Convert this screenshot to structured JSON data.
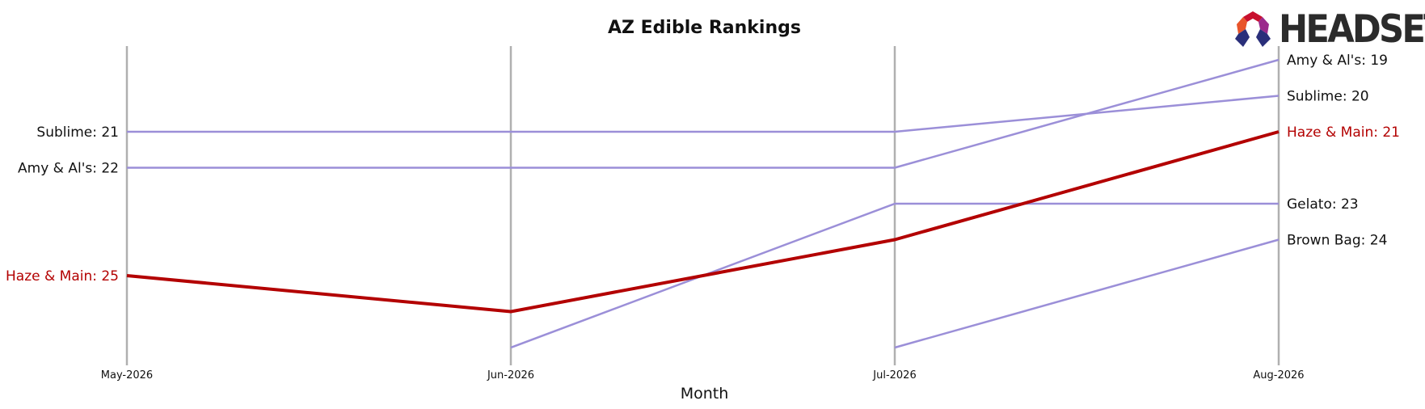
{
  "chart_data": {
    "type": "line",
    "title": "AZ Edible Rankings",
    "xlabel": "Month",
    "ylabel": "",
    "categories": [
      "May-2026",
      "Jun-2026",
      "Jul-2026",
      "Aug-2026"
    ],
    "y_inverted": true,
    "ylim": [
      18,
      27
    ],
    "grid": false,
    "highlight_color": "#b30000",
    "series_color": "#9b8fd8",
    "axis_color": "#b0b0b0",
    "series": [
      {
        "name": "Haze & Main",
        "values": [
          25,
          26,
          24,
          21
        ],
        "highlight": true
      },
      {
        "name": "Sublime",
        "values": [
          21,
          21,
          21,
          20
        ],
        "highlight": false
      },
      {
        "name": "Amy & Al's",
        "values": [
          22,
          22,
          22,
          19
        ],
        "highlight": false
      },
      {
        "name": "Gelato",
        "values": [
          null,
          27,
          23,
          23
        ],
        "highlight": false
      },
      {
        "name": "Brown Bag",
        "values": [
          null,
          null,
          27,
          24
        ],
        "highlight": false
      }
    ],
    "left_labels": [
      {
        "text": "Sublime: 21",
        "series": "Sublime",
        "highlight": false
      },
      {
        "text": "Amy & Al's: 22",
        "series": "Amy & Al's",
        "highlight": false
      },
      {
        "text": "Haze & Main: 25",
        "series": "Haze & Main",
        "highlight": true
      }
    ],
    "right_labels": [
      {
        "text": "Amy & Al's: 19",
        "series": "Amy & Al's",
        "highlight": false
      },
      {
        "text": "Sublime: 20",
        "series": "Sublime",
        "highlight": false
      },
      {
        "text": "Haze & Main: 21",
        "series": "Haze & Main",
        "highlight": true
      },
      {
        "text": "Gelato: 23",
        "series": "Gelato",
        "highlight": false
      },
      {
        "text": "Brown Bag: 24",
        "series": "Brown Bag",
        "highlight": false
      }
    ]
  },
  "branding": {
    "logo_text": "HEADSET",
    "logo_colors": [
      "#c8102e",
      "#e8542a",
      "#f7a823",
      "#9b2a8c",
      "#2a2f7a"
    ]
  }
}
